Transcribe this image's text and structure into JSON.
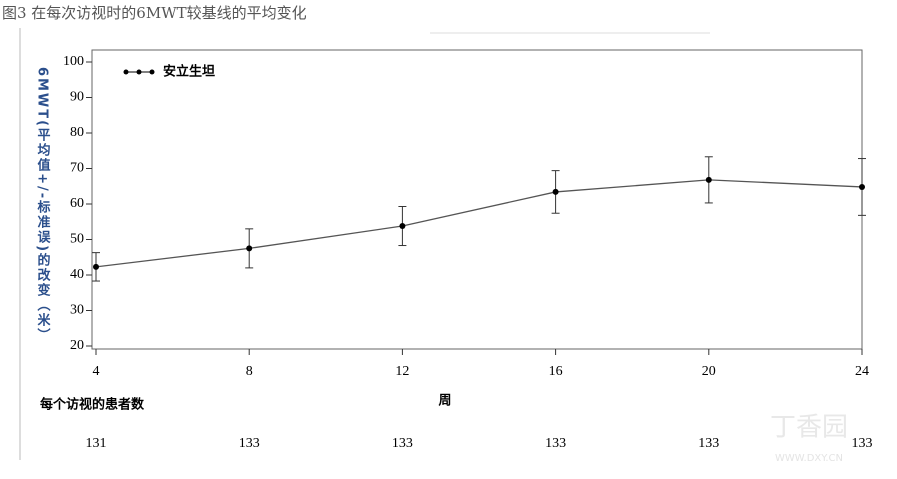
{
  "chart_data": {
    "type": "line",
    "title": "图3 在每次访视时的6MWT较基线的平均变化",
    "x_label": "周",
    "y_label": "6MWT(平均值+/-标准误)的改变（米）",
    "x": [
      4,
      8,
      12,
      16,
      20,
      24
    ],
    "xlim": [
      4,
      24
    ],
    "xticks": [
      4,
      8,
      12,
      16,
      20,
      24
    ],
    "ylim": [
      20,
      100
    ],
    "yticks": [
      20,
      30,
      40,
      50,
      60,
      70,
      80,
      90,
      100
    ],
    "legend": "top-left",
    "series": [
      {
        "name": "安立生坦",
        "color": "#555555",
        "values": [
          42.3,
          47.5,
          53.8,
          63.4,
          66.8,
          64.8
        ],
        "errors": [
          4,
          5.5,
          5.5,
          6,
          6.5,
          8
        ]
      }
    ],
    "patient_counts": {
      "label": "每个访视的患者数",
      "values": [
        131,
        133,
        133,
        133,
        133,
        133
      ]
    },
    "watermark": [
      "丁香园",
      "WWW.DXY.CN"
    ]
  }
}
